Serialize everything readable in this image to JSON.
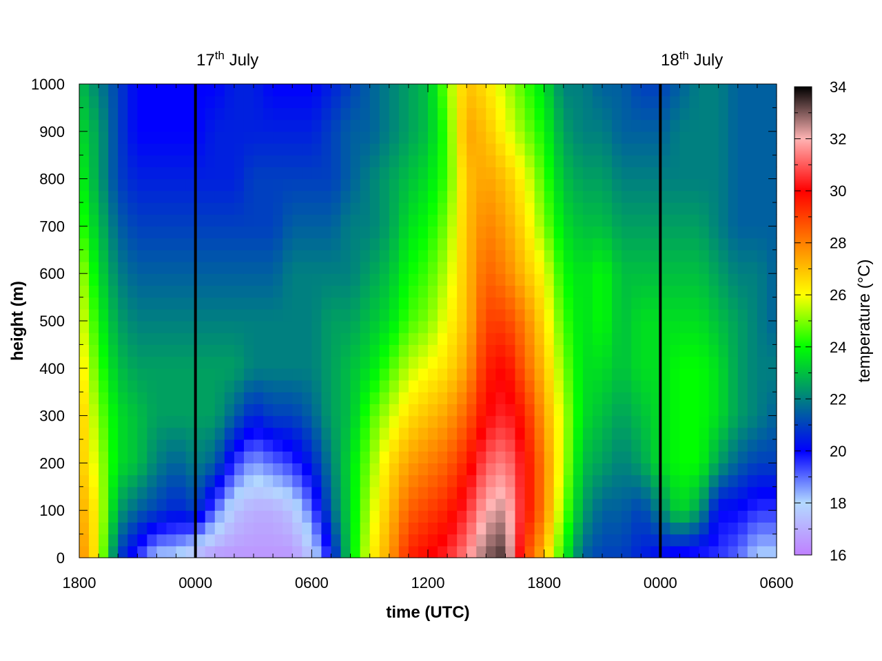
{
  "chart_data": {
    "type": "heatmap",
    "title": "",
    "xlabel": "time (UTC)",
    "ylabel": "height (m)",
    "x_tick_labels": [
      "1800",
      "0000",
      "0600",
      "1200",
      "1800",
      "0000",
      "0600"
    ],
    "x_tick_hours": [
      0,
      6,
      12,
      18,
      24,
      30,
      36
    ],
    "x_range_hours": [
      0,
      36
    ],
    "ylim": [
      0,
      1000
    ],
    "y_ticks": [
      0,
      100,
      200,
      300,
      400,
      500,
      600,
      700,
      800,
      900,
      1000
    ],
    "colorbar": {
      "label": "temperature (°C)",
      "range": [
        16,
        34
      ],
      "ticks": [
        16,
        18,
        20,
        22,
        24,
        26,
        28,
        30,
        32,
        34
      ],
      "palette": [
        "#bf80ff",
        "#b3d9ff",
        "#0000ff",
        "#008080",
        "#00ff00",
        "#ffff00",
        "#ff8000",
        "#ff0000",
        "#ffb3b3",
        "#000000"
      ]
    },
    "date_markers": [
      {
        "hour": 6,
        "day": "17",
        "suffix": "th",
        "month": "July"
      },
      {
        "hour": 30,
        "day": "18",
        "suffix": "th",
        "month": "July"
      }
    ],
    "grid": false,
    "heights_m": [
      0,
      100,
      200,
      300,
      400,
      500,
      600,
      700,
      800,
      900,
      1000
    ],
    "profiles": [
      {
        "hour": 0,
        "temps": [
          28,
          27.5,
          27,
          27,
          26.5,
          26,
          25.5,
          24.5,
          24,
          23.5,
          23
        ]
      },
      {
        "hour": 1,
        "temps": [
          26,
          26,
          25.5,
          25,
          24.5,
          24,
          23.5,
          23,
          22.5,
          22.5,
          22
        ]
      },
      {
        "hour": 2,
        "temps": [
          21,
          22.5,
          23.5,
          23.5,
          23,
          22.5,
          22,
          21.5,
          21,
          21,
          21
        ]
      },
      {
        "hour": 3,
        "temps": [
          19.5,
          21.5,
          23,
          23,
          22.5,
          22,
          21.5,
          21,
          20.5,
          20,
          20
        ]
      },
      {
        "hour": 4,
        "temps": [
          18,
          21,
          22,
          22.5,
          22.5,
          22,
          21.5,
          21,
          20.5,
          20,
          20
        ]
      },
      {
        "hour": 5,
        "temps": [
          18,
          20.5,
          21.5,
          22.5,
          22.5,
          22,
          21.5,
          21,
          20.5,
          20,
          20
        ]
      },
      {
        "hour": 6,
        "temps": [
          17,
          21,
          22,
          22.5,
          22.5,
          22,
          21.5,
          21,
          20.5,
          20,
          20
        ]
      },
      {
        "hour": 7,
        "temps": [
          16.5,
          19,
          21.5,
          22.5,
          22.5,
          22,
          21.5,
          21,
          20.5,
          20.5,
          20
        ]
      },
      {
        "hour": 8,
        "temps": [
          16.5,
          17.5,
          19.5,
          21.5,
          22.5,
          22,
          21.5,
          21,
          20.5,
          20.5,
          20.5
        ]
      },
      {
        "hour": 9,
        "temps": [
          16.5,
          17,
          18.5,
          20.5,
          22,
          22,
          21.5,
          21,
          21,
          20.5,
          20.5
        ]
      },
      {
        "hour": 10,
        "temps": [
          16.5,
          17,
          19,
          21,
          22,
          22,
          21.5,
          21,
          21,
          20.5,
          20
        ]
      },
      {
        "hour": 11,
        "temps": [
          16.5,
          17.5,
          19.5,
          21,
          22,
          22,
          22,
          21.5,
          21,
          20.5,
          20
        ]
      },
      {
        "hour": 12,
        "temps": [
          17.5,
          19,
          20.5,
          21.5,
          22,
          22,
          22,
          21.5,
          21,
          20.5,
          20
        ]
      },
      {
        "hour": 13,
        "temps": [
          20,
          21.5,
          22,
          22.5,
          22.5,
          22.5,
          22,
          21.5,
          21,
          21,
          20.5
        ]
      },
      {
        "hour": 14,
        "temps": [
          23.5,
          23.5,
          23.5,
          23,
          23,
          22.5,
          22,
          22,
          21.5,
          21.5,
          21
        ]
      },
      {
        "hour": 15,
        "temps": [
          26,
          25.5,
          25,
          24.5,
          23.5,
          23,
          22.5,
          22,
          22,
          21.5,
          21.5
        ]
      },
      {
        "hour": 16,
        "temps": [
          27.5,
          27,
          26.5,
          25.5,
          24.5,
          23.5,
          23,
          22.5,
          22.5,
          22,
          22
        ]
      },
      {
        "hour": 17,
        "temps": [
          29.5,
          28.5,
          27.5,
          26.5,
          25.5,
          24.5,
          24,
          23.5,
          23,
          22.5,
          22.5
        ]
      },
      {
        "hour": 18,
        "temps": [
          30,
          29,
          28,
          27,
          26,
          25,
          24.5,
          24,
          23.5,
          23,
          23
        ]
      },
      {
        "hour": 19,
        "temps": [
          30.5,
          29.5,
          28.5,
          27.5,
          26.5,
          26,
          25.5,
          25,
          24.5,
          24.5,
          25
        ]
      },
      {
        "hour": 20,
        "temps": [
          31.5,
          30.5,
          29.5,
          28.5,
          27.5,
          27,
          27,
          27,
          27,
          27.5,
          27
        ]
      },
      {
        "hour": 21,
        "temps": [
          33,
          32,
          31,
          30,
          29.5,
          29,
          28.5,
          28,
          27.5,
          27,
          26.5
        ]
      },
      {
        "hour": 22,
        "temps": [
          33.5,
          32.5,
          31.5,
          30.5,
          30,
          29,
          28,
          27.5,
          27,
          26,
          25.5
        ]
      },
      {
        "hour": 23,
        "temps": [
          29,
          30,
          30,
          29.5,
          28.5,
          28,
          27,
          26.5,
          26,
          25,
          24.5
        ]
      },
      {
        "hour": 24,
        "temps": [
          27,
          28,
          28,
          27.5,
          27,
          26.5,
          26,
          25,
          24.5,
          24,
          23.5
        ]
      },
      {
        "hour": 25,
        "temps": [
          24,
          25,
          25.5,
          25.5,
          25,
          24.5,
          24,
          23.5,
          23,
          22.5,
          22
        ]
      },
      {
        "hour": 26,
        "temps": [
          21.5,
          22.5,
          23,
          23.5,
          23.5,
          23.5,
          23.5,
          23,
          22.5,
          22,
          22
        ]
      },
      {
        "hour": 27,
        "temps": [
          21,
          21.5,
          22.5,
          23,
          23.5,
          24,
          24,
          23,
          22.5,
          22,
          21.5
        ]
      },
      {
        "hour": 28,
        "temps": [
          21,
          21.5,
          22,
          22.5,
          23,
          23,
          23,
          22.5,
          22,
          21.5,
          21.5
        ]
      },
      {
        "hour": 29,
        "temps": [
          20.5,
          21,
          22.5,
          23,
          23.5,
          23.5,
          23,
          22.5,
          22,
          21.5,
          21
        ]
      },
      {
        "hour": 30,
        "temps": [
          20,
          22,
          23.5,
          23.5,
          23.5,
          23.5,
          23,
          22.5,
          22,
          21.5,
          21
        ]
      },
      {
        "hour": 31,
        "temps": [
          19.5,
          23.5,
          24,
          24,
          24,
          23.5,
          23,
          22.5,
          22,
          22,
          21.5
        ]
      },
      {
        "hour": 32,
        "temps": [
          19.5,
          22.5,
          24,
          24,
          24,
          23.5,
          23,
          22.5,
          22,
          22,
          22
        ]
      },
      {
        "hour": 33,
        "temps": [
          19.5,
          20,
          22.5,
          23.5,
          23.5,
          23,
          22.5,
          22,
          22,
          22,
          22
        ]
      },
      {
        "hour": 34,
        "temps": [
          19,
          20,
          21.5,
          22.5,
          22.5,
          22.5,
          22,
          21.5,
          21.5,
          21.5,
          21.5
        ]
      },
      {
        "hour": 35,
        "temps": [
          18,
          19.5,
          21,
          22,
          22,
          22,
          22,
          21.5,
          21.5,
          21.5,
          21.5
        ]
      },
      {
        "hour": 36,
        "temps": [
          18,
          19.5,
          21,
          21.5,
          22,
          21.5,
          21.5,
          21.5,
          21.5,
          21.5,
          21.5
        ]
      }
    ]
  }
}
